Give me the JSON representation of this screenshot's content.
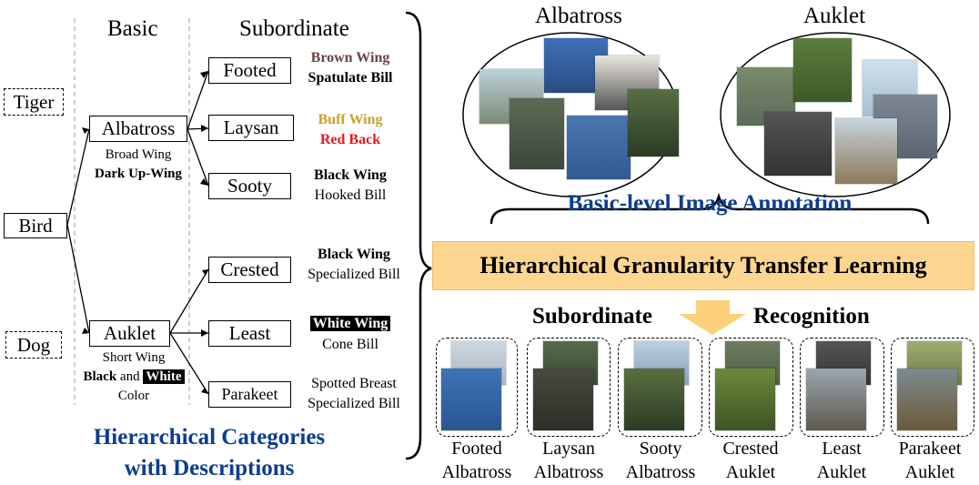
{
  "left": {
    "col_basic": "Basic",
    "col_subordinate": "Subordinate",
    "nodes": {
      "tiger": "Tiger",
      "bird": "Bird",
      "dog": "Dog",
      "albatross": "Albatross",
      "auklet": "Auklet",
      "footed": "Footed",
      "laysan": "Laysan",
      "sooty": "Sooty",
      "crested": "Crested",
      "least": "Least",
      "parakeet": "Parakeet"
    },
    "albatross_desc": {
      "line1": "Broad Wing",
      "line2": "Dark Up-Wing"
    },
    "auklet_desc": {
      "line1": "Short Wing",
      "black": "Black",
      "and": "and",
      "white": "White",
      "color": "Color"
    },
    "footed_desc": {
      "line1": "Brown Wing",
      "line2": "Spatulate Bill"
    },
    "laysan_desc": {
      "line1": "Buff Wing",
      "line2": "Red Back"
    },
    "sooty_desc": {
      "line1": "Black Wing",
      "line2": "Hooked Bill"
    },
    "crested_desc": {
      "line1": "Black Wing",
      "line2": "Specialized Bill"
    },
    "least_desc": {
      "line1": "White Wing",
      "line2": "Cone Bill"
    },
    "parakeet_desc": {
      "line1": "Spotted Breast",
      "line2": "Specialized Bill"
    },
    "caption_line1": "Hierarchical Categories",
    "caption_line2": "with Descriptions"
  },
  "right": {
    "albatross_label": "Albatross",
    "auklet_label": "Auklet",
    "annotation_caption": "Basic-level Image Annotation",
    "banner": "Hierarchical Granularity Transfer Learning",
    "subordinate_word": "Subordinate",
    "recognition_word": "Recognition",
    "groups": [
      {
        "line1": "Footed",
        "line2": "Albatross"
      },
      {
        "line1": "Laysan",
        "line2": "Albatross"
      },
      {
        "line1": "Sooty",
        "line2": "Albatross"
      },
      {
        "line1": "Crested",
        "line2": "Auklet"
      },
      {
        "line1": "Least",
        "line2": "Auklet"
      },
      {
        "line1": "Parakeet",
        "line2": "Auklet"
      }
    ]
  },
  "colors": {
    "brown_wing": "#6b4343",
    "buff_wing": "#c9a227",
    "red_back": "#e41a1a",
    "blue_caption": "#0b3d91",
    "banner_fill": "#fcd590",
    "arrow_fill": "#fcd17a"
  }
}
